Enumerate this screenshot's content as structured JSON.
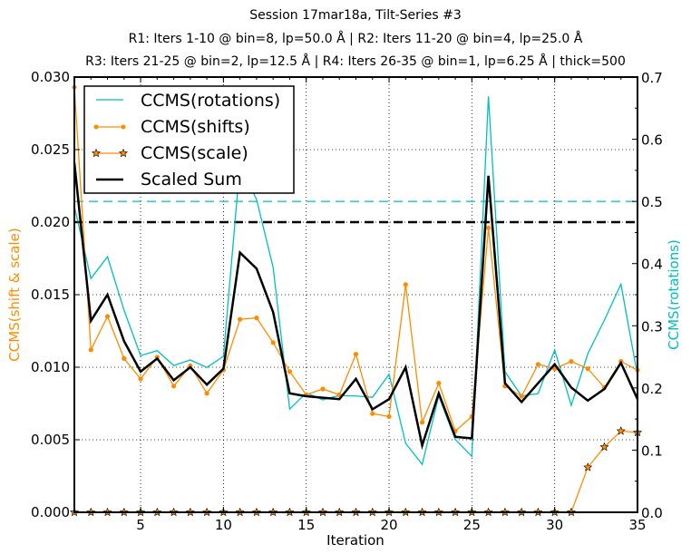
{
  "chart_data": {
    "type": "line",
    "title_lines": [
      "Session 17mar18a, Tilt-Series #3",
      "R1: Iters 1-10 @ bin=8, lp=50.0 Å | R2: Iters 11-20 @ bin=4, lp=25.0 Å",
      "R3: Iters 21-25 @ bin=2, lp=12.5 Å | R4: Iters 26-35 @ bin=1, lp=6.25 Å | thick=500"
    ],
    "xlabel": "Iteration",
    "ylabel_left": "CCMS(shift & scale)",
    "ylabel_right": "CCMS(rotations)",
    "xlim": [
      1,
      35
    ],
    "ylim_left": [
      0,
      0.03
    ],
    "ylim_right": [
      0,
      0.7
    ],
    "x_ticks": [
      5,
      10,
      15,
      20,
      25,
      30,
      35
    ],
    "y_ticks_left": [
      "0.000",
      "0.005",
      "0.010",
      "0.015",
      "0.020",
      "0.025",
      "0.030"
    ],
    "y_ticks_right": [
      "0.0",
      "0.1",
      "0.2",
      "0.3",
      "0.4",
      "0.5",
      "0.6",
      "0.7"
    ],
    "grid": true,
    "legend_position": "top-left",
    "colors": {
      "rotations": "#00bfbf",
      "shifts": "#ff8c00",
      "scale": "#ff8c00",
      "sum": "#000000",
      "left_axis_label": "#ff8c00",
      "right_axis_label": "#00bfbf"
    },
    "x": [
      1,
      2,
      3,
      4,
      5,
      6,
      7,
      8,
      9,
      10,
      11,
      12,
      13,
      14,
      15,
      16,
      17,
      18,
      19,
      20,
      21,
      22,
      23,
      24,
      25,
      26,
      27,
      28,
      29,
      30,
      31,
      32,
      33,
      34,
      35
    ],
    "series": [
      {
        "name": "CCMS(rotations)",
        "axis": "right",
        "marker": "none",
        "values": [
          0.492,
          0.376,
          0.411,
          0.325,
          0.252,
          0.26,
          0.236,
          0.245,
          0.233,
          0.251,
          0.56,
          0.503,
          0.394,
          0.166,
          0.192,
          0.181,
          0.188,
          0.187,
          0.185,
          0.222,
          0.111,
          0.077,
          0.187,
          0.117,
          0.09,
          0.669,
          0.226,
          0.187,
          0.191,
          0.261,
          0.172,
          0.255,
          0.309,
          0.367,
          0.22
        ]
      },
      {
        "name": "CCMS(shifts)",
        "axis": "left",
        "marker": "circle",
        "values": [
          0.0293,
          0.0112,
          0.0135,
          0.0106,
          0.0092,
          0.0107,
          0.0087,
          0.0101,
          0.0082,
          0.0098,
          0.0133,
          0.0134,
          0.0117,
          0.0097,
          0.0081,
          0.0085,
          0.0081,
          0.0109,
          0.0068,
          0.0066,
          0.0157,
          0.0062,
          0.0089,
          0.0056,
          0.0066,
          0.0196,
          0.0087,
          0.008,
          0.0102,
          0.0099,
          0.0104,
          0.0099,
          0.0086,
          0.0104,
          0.0098
        ]
      },
      {
        "name": "CCMS(scale)",
        "axis": "left",
        "marker": "star",
        "values": [
          0,
          0,
          0,
          0,
          0,
          0,
          0,
          0,
          0,
          0,
          0,
          0,
          0,
          0,
          0,
          0,
          0,
          0,
          0,
          0,
          0,
          0,
          0,
          0,
          0,
          0,
          0,
          0,
          0,
          0,
          0,
          0.0031,
          0.0045,
          0.0056,
          0.0055
        ]
      },
      {
        "name": "Scaled Sum",
        "axis": "left",
        "marker": "none",
        "values": [
          0.0241,
          0.0132,
          0.015,
          0.0118,
          0.0097,
          0.0106,
          0.0091,
          0.01,
          0.0088,
          0.0099,
          0.0179,
          0.0168,
          0.0138,
          0.0082,
          0.008,
          0.0079,
          0.0078,
          0.0092,
          0.0071,
          0.0078,
          0.01,
          0.0046,
          0.0082,
          0.0052,
          0.0051,
          0.0232,
          0.0089,
          0.0076,
          0.0089,
          0.0102,
          0.0086,
          0.0077,
          0.0085,
          0.0103,
          0.0078
        ]
      }
    ],
    "threshold_lines": [
      {
        "name": "rotations-threshold",
        "axis": "right",
        "value": 0.5,
        "color": "#00bfbf",
        "style": "dashed"
      },
      {
        "name": "shifts-threshold",
        "axis": "left",
        "value": 0.02,
        "color": "#ff8c00",
        "style": "dashed"
      },
      {
        "name": "sum-threshold",
        "axis": "left",
        "value": 0.02,
        "color": "#000000",
        "style": "dashed"
      }
    ],
    "legend": [
      "CCMS(rotations)",
      "CCMS(shifts)",
      "CCMS(scale)",
      "Scaled Sum"
    ]
  }
}
